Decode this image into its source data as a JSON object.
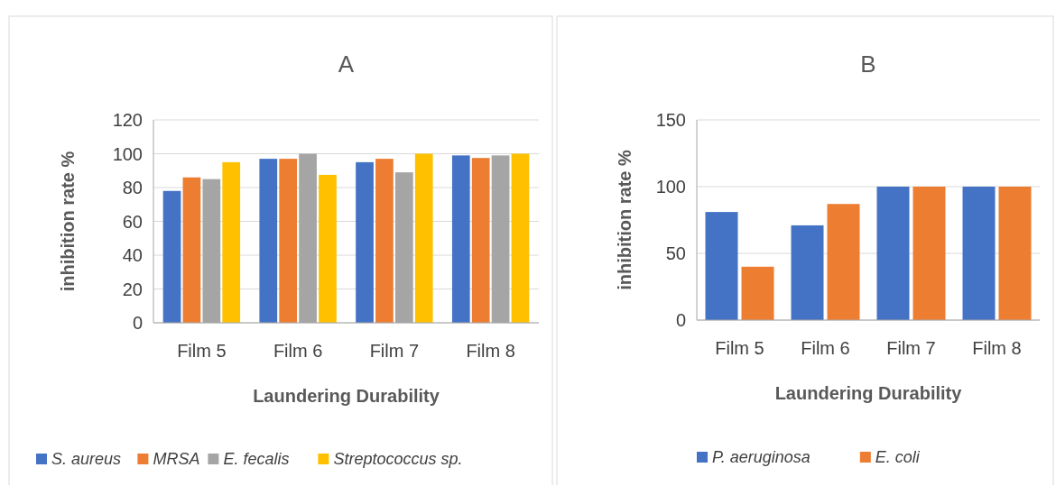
{
  "chart_data": [
    {
      "type": "bar",
      "title": "A",
      "xlabel": "Laundering Durability",
      "ylabel": "inhibition rate %",
      "categories": [
        "Film 5",
        "Film 6",
        "Film 7",
        "Film 8"
      ],
      "series": [
        {
          "name": "S. aureus",
          "color": "#4472c4",
          "values": [
            78,
            97,
            95,
            99
          ]
        },
        {
          "name": "MRSA",
          "color": "#ed7d31",
          "values": [
            86,
            97,
            97,
            97.5
          ]
        },
        {
          "name": "E. fecalis",
          "color": "#a5a5a5",
          "values": [
            85,
            100,
            89,
            99
          ]
        },
        {
          "name": "Streptococcus sp.",
          "color": "#ffc000",
          "values": [
            95,
            87.5,
            100,
            100
          ]
        }
      ],
      "ylim": [
        0,
        120
      ],
      "yticks": [
        0,
        20,
        40,
        60,
        80,
        100,
        120
      ],
      "grid": "y",
      "legend": "bottom"
    },
    {
      "type": "bar",
      "title": "B",
      "xlabel": "Laundering Durability",
      "ylabel": "inhibition rate %",
      "categories": [
        "Film 5",
        "Film 6",
        "Film 7",
        "Film 8"
      ],
      "series": [
        {
          "name": "P. aeruginosa",
          "color": "#4472c4",
          "values": [
            81,
            71,
            100,
            100
          ]
        },
        {
          "name": "E. coli",
          "color": "#ed7d31",
          "values": [
            40,
            87,
            100,
            100
          ]
        }
      ],
      "ylim": [
        0,
        150
      ],
      "yticks": [
        0,
        50,
        100,
        150
      ],
      "grid": "y",
      "legend": "bottom"
    }
  ]
}
